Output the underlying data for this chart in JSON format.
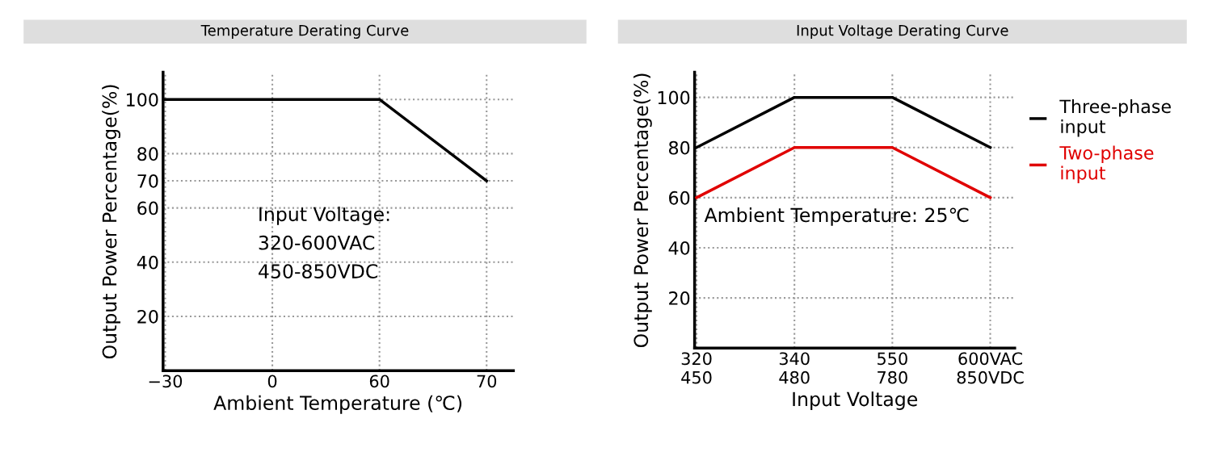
{
  "chart_data": [
    {
      "type": "line",
      "title": "Temperature Derating Curve",
      "xlabel": "Ambient Temperature (℃)",
      "ylabel": "Output Power Percentage(%)",
      "categories": [
        "−30",
        "0",
        "60",
        "70"
      ],
      "series": [
        {
          "color": "#000000",
          "values": [
            100,
            100,
            100,
            70
          ]
        }
      ],
      "ylim": [
        0,
        110
      ],
      "yticks": [
        20,
        40,
        60,
        70,
        80,
        100
      ],
      "grid": true,
      "annotations": [
        "Input Voltage:\n320-600VAC\n450-850VDC"
      ]
    },
    {
      "type": "line",
      "title": "Input Voltage Derating Curve",
      "xlabel": "Input Voltage",
      "ylabel": "Output Power Percentage(%)",
      "categories": [
        "320\n450",
        "340\n480",
        "550\n780",
        "600VAC\n850VDC"
      ],
      "series": [
        {
          "name": "Three-phase\ninput",
          "color": "#000000",
          "values": [
            80,
            100,
            100,
            80
          ]
        },
        {
          "name": "Two-phase\ninput",
          "color": "#e00000",
          "values": [
            60,
            80,
            80,
            60
          ]
        }
      ],
      "ylim": [
        0,
        110
      ],
      "yticks": [
        20,
        40,
        60,
        80,
        100
      ],
      "grid": true,
      "legend": "right",
      "annotations": [
        "Ambient Temperature: 25℃"
      ]
    }
  ]
}
